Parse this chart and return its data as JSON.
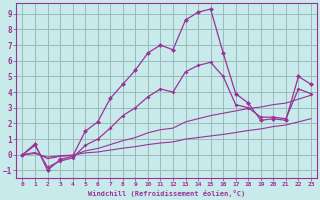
{
  "xlabel": "Windchill (Refroidissement éolien,°C)",
  "bg_color": "#c8eaea",
  "line_color": "#993399",
  "grid_color": "#99bbbb",
  "xlim": [
    -0.5,
    23.5
  ],
  "ylim": [
    -1.5,
    9.7
  ],
  "yticks": [
    -1,
    0,
    1,
    2,
    3,
    4,
    5,
    6,
    7,
    8,
    9
  ],
  "xticks": [
    0,
    1,
    2,
    3,
    4,
    5,
    6,
    7,
    8,
    9,
    10,
    11,
    12,
    13,
    14,
    15,
    16,
    17,
    18,
    19,
    20,
    21,
    22,
    23
  ],
  "s1_x": [
    0,
    1,
    2,
    3,
    4,
    5,
    6,
    7,
    8,
    9,
    10,
    11,
    12,
    13,
    14,
    15,
    16,
    17,
    18,
    19,
    20,
    21,
    22,
    23
  ],
  "s1_y": [
    0.0,
    0.7,
    -1.0,
    -0.3,
    -0.1,
    1.5,
    2.1,
    3.6,
    4.5,
    5.4,
    6.5,
    7.0,
    6.7,
    8.6,
    9.1,
    9.3,
    6.5,
    3.9,
    3.3,
    2.2,
    2.3,
    2.2,
    5.0,
    4.5
  ],
  "s2_x": [
    0,
    1,
    2,
    3,
    4,
    5,
    6,
    7,
    8,
    9,
    10,
    11,
    12,
    13,
    14,
    15,
    16,
    17,
    18,
    19,
    20,
    21,
    22,
    23
  ],
  "s2_y": [
    0.0,
    0.6,
    -0.8,
    -0.4,
    -0.2,
    0.6,
    1.0,
    1.7,
    2.5,
    3.0,
    3.7,
    4.2,
    4.0,
    5.3,
    5.7,
    5.9,
    5.0,
    3.2,
    3.0,
    2.4,
    2.4,
    2.3,
    4.2,
    3.9
  ],
  "s3_x": [
    0,
    1,
    2,
    3,
    4,
    5,
    6,
    7,
    8,
    9,
    10,
    11,
    12,
    13,
    14,
    15,
    16,
    17,
    18,
    19,
    20,
    21,
    22,
    23
  ],
  "s3_y": [
    0.0,
    0.15,
    -0.25,
    -0.1,
    -0.05,
    0.25,
    0.4,
    0.65,
    0.9,
    1.1,
    1.4,
    1.6,
    1.7,
    2.1,
    2.3,
    2.5,
    2.65,
    2.8,
    2.95,
    3.05,
    3.2,
    3.3,
    3.55,
    3.8
  ],
  "s4_x": [
    0,
    1,
    2,
    3,
    4,
    5,
    6,
    7,
    8,
    9,
    10,
    11,
    12,
    13,
    14,
    15,
    16,
    17,
    18,
    19,
    20,
    21,
    22,
    23
  ],
  "s4_y": [
    0.0,
    0.08,
    -0.15,
    -0.06,
    -0.02,
    0.12,
    0.18,
    0.3,
    0.42,
    0.52,
    0.65,
    0.75,
    0.82,
    1.0,
    1.1,
    1.2,
    1.3,
    1.42,
    1.55,
    1.65,
    1.8,
    1.9,
    2.1,
    2.3
  ]
}
